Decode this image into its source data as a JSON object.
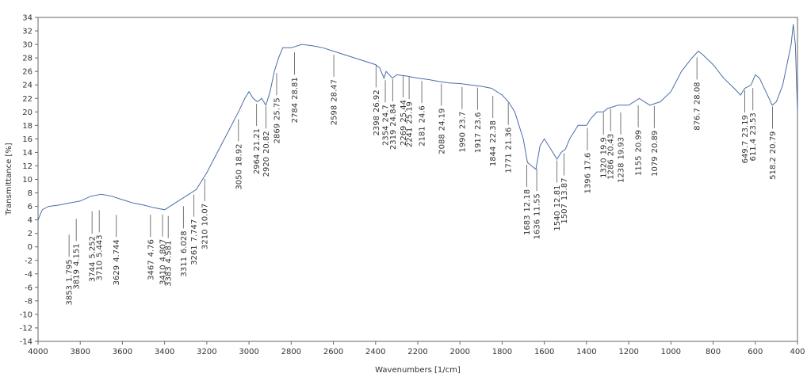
{
  "chart_data": {
    "type": "line",
    "xlabel": "Wavenumbers [1/cm]",
    "ylabel": "Transmittance [%]",
    "xlim": [
      4000,
      400
    ],
    "ylim": [
      -14,
      34
    ],
    "xticks": [
      4000,
      3800,
      3600,
      3400,
      3200,
      3000,
      2800,
      2600,
      2400,
      2200,
      2000,
      1800,
      1600,
      1400,
      1200,
      1000,
      800,
      600,
      400
    ],
    "yticks": [
      -14,
      -12,
      -10,
      -8,
      -6,
      -4,
      -2,
      0,
      2,
      4,
      6,
      8,
      10,
      12,
      14,
      16,
      18,
      20,
      22,
      24,
      26,
      28,
      30,
      32,
      34
    ],
    "color": "#4a6da7",
    "x": [
      4000,
      3980,
      3950,
      3900,
      3850,
      3800,
      3750,
      3700,
      3650,
      3600,
      3550,
      3500,
      3450,
      3400,
      3350,
      3300,
      3250,
      3200,
      3150,
      3100,
      3050,
      3020,
      3000,
      2980,
      2960,
      2940,
      2920,
      2900,
      2880,
      2860,
      2840,
      2800,
      2750,
      2700,
      2650,
      2600,
      2550,
      2500,
      2450,
      2400,
      2380,
      2360,
      2350,
      2320,
      2300,
      2250,
      2200,
      2150,
      2100,
      2050,
      2000,
      1950,
      1900,
      1850,
      1800,
      1770,
      1740,
      1720,
      1700,
      1680,
      1660,
      1640,
      1620,
      1600,
      1580,
      1560,
      1540,
      1520,
      1500,
      1480,
      1460,
      1440,
      1400,
      1380,
      1350,
      1320,
      1300,
      1250,
      1200,
      1150,
      1100,
      1050,
      1000,
      950,
      900,
      870,
      850,
      800,
      750,
      700,
      670,
      650,
      620,
      600,
      580,
      550,
      520,
      500,
      470,
      450,
      430,
      420,
      410,
      400
    ],
    "values": [
      4,
      5.5,
      6,
      6.2,
      6.5,
      6.8,
      7.5,
      7.8,
      7.5,
      7,
      6.5,
      6.2,
      5.8,
      5.5,
      6.5,
      7.5,
      8.5,
      11,
      14,
      17,
      20,
      22,
      23,
      22,
      21.5,
      22,
      21,
      23,
      26,
      28,
      29.5,
      29.5,
      30,
      29.8,
      29.5,
      29,
      28.5,
      28,
      27.5,
      27,
      26.5,
      25,
      26,
      25,
      25.5,
      25.3,
      25,
      24.8,
      24.5,
      24.3,
      24.2,
      24,
      23.8,
      23.5,
      22.5,
      21.5,
      20,
      18,
      16,
      12.5,
      12,
      11.5,
      15,
      16,
      15,
      14,
      13,
      14,
      14.5,
      16,
      17,
      18,
      18,
      19,
      20,
      20,
      20.5,
      21,
      21,
      22,
      21,
      21.5,
      23,
      26,
      28,
      29,
      28.5,
      27,
      25,
      23.5,
      22.5,
      23.5,
      24,
      25.5,
      25,
      23,
      21,
      21.5,
      24,
      27,
      30,
      33,
      30,
      20
    ],
    "peaks": {
      "x": [
        3853,
        3819,
        3744,
        3710,
        3629,
        3467,
        3410,
        3383,
        3311,
        3261,
        3210,
        3050,
        2964,
        2920,
        2869,
        2784,
        2598,
        2398,
        2354,
        2319,
        2269,
        2241,
        2181,
        2088,
        1990,
        1917,
        1844,
        1771,
        1683,
        1636,
        1540,
        1507,
        1396,
        1320,
        1286,
        1238,
        1155,
        1079,
        876.7,
        649.7,
        611.4,
        518.2
      ],
      "values": [
        1.795,
        4.151,
        5.252,
        5.443,
        4.744,
        4.76,
        4.807,
        4.581,
        6.028,
        7.747,
        10.07,
        18.92,
        21.21,
        20.82,
        25.75,
        28.81,
        28.47,
        26.92,
        24.7,
        24.84,
        25.44,
        25.19,
        24.6,
        24.19,
        23.7,
        23.6,
        22.38,
        21.36,
        12.18,
        11.55,
        12.81,
        13.87,
        17.6,
        19.9,
        20.43,
        19.93,
        20.99,
        20.89,
        28.08,
        23.19,
        23.53,
        20.79
      ]
    }
  }
}
